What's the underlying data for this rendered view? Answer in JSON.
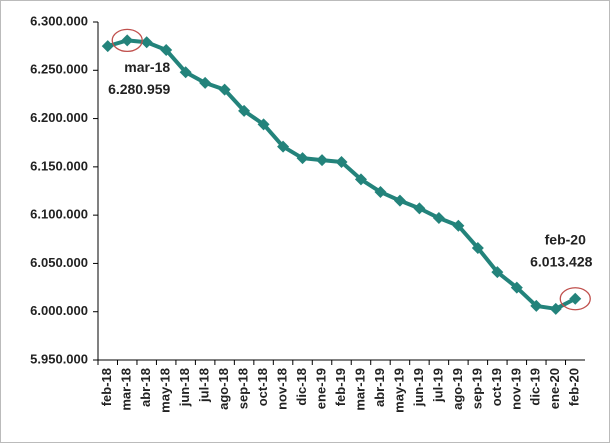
{
  "chart_data": {
    "type": "line",
    "categories": [
      "feb-18",
      "mar-18",
      "abr-18",
      "may-18",
      "jun-18",
      "jul-18",
      "ago-18",
      "sep-18",
      "oct-18",
      "nov-18",
      "dic-18",
      "ene-19",
      "feb-19",
      "mar-19",
      "abr-19",
      "may-19",
      "jun-19",
      "jul-19",
      "ago-19",
      "sep-19",
      "oct-19",
      "nov-19",
      "dic-19",
      "ene-20",
      "feb-20"
    ],
    "values": [
      6275000,
      6280959,
      6279000,
      6271000,
      6248000,
      6237000,
      6230000,
      6208000,
      6194000,
      6171000,
      6159000,
      6157000,
      6155000,
      6137000,
      6124000,
      6115000,
      6107000,
      6097000,
      6089000,
      6066000,
      6041000,
      6025000,
      6006000,
      6003000,
      6013428
    ],
    "value_labels": [
      null,
      "6.280.959",
      null,
      null,
      null,
      null,
      null,
      null,
      null,
      null,
      null,
      null,
      null,
      null,
      null,
      null,
      null,
      null,
      null,
      null,
      null,
      null,
      null,
      null,
      "6.013.428"
    ],
    "color": "#23837b",
    "highlight_color": "#c0504d",
    "ylim": [
      5950000,
      6300000
    ],
    "yticks": [
      {
        "value": 5950000,
        "label": "5.950.000"
      },
      {
        "value": 6000000,
        "label": "6.000.000"
      },
      {
        "value": 6050000,
        "label": "6.050.000"
      },
      {
        "value": 6100000,
        "label": "6.100.000"
      },
      {
        "value": 6150000,
        "label": "6.150.000"
      },
      {
        "value": 6200000,
        "label": "6.200.000"
      },
      {
        "value": 6250000,
        "label": "6.250.000"
      },
      {
        "value": 6300000,
        "label": "6.300.000"
      }
    ],
    "grid": false
  }
}
